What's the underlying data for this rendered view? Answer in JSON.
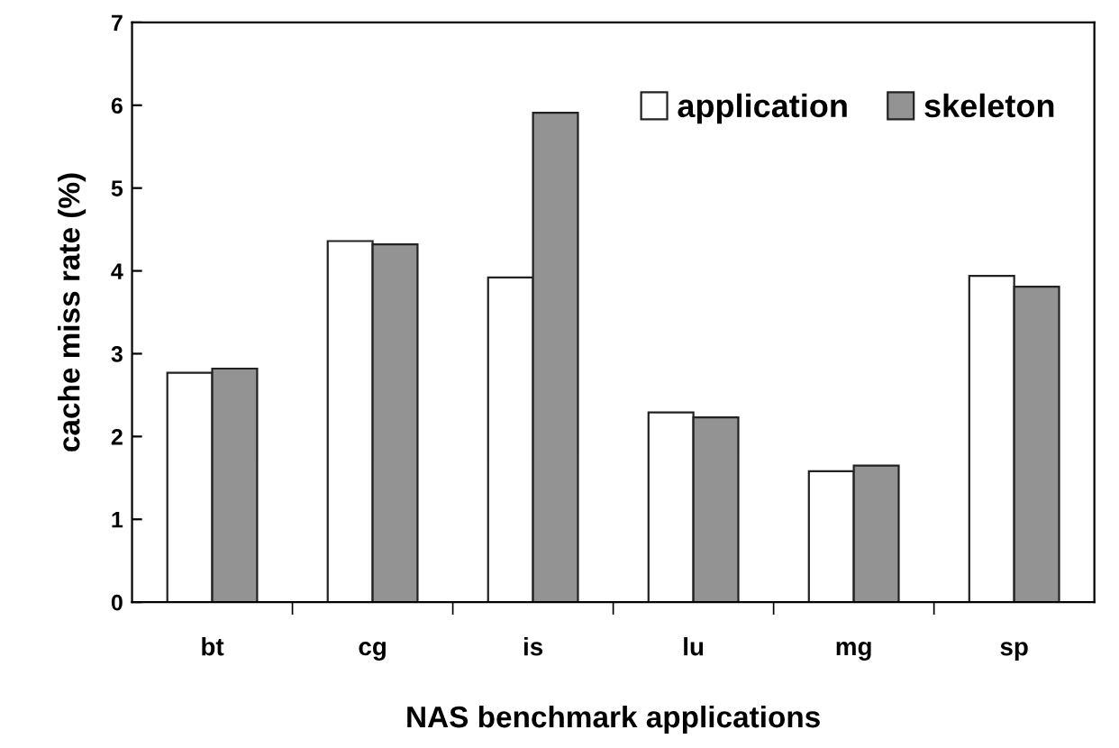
{
  "chart_data": {
    "type": "bar",
    "xlabel": "NAS benchmark applications",
    "ylabel": "cache miss rate (%)",
    "categories": [
      "bt",
      "cg",
      "is",
      "lu",
      "mg",
      "sp"
    ],
    "series": [
      {
        "name": "application",
        "color": "#ffffff",
        "values": [
          2.77,
          4.36,
          3.92,
          2.29,
          1.58,
          3.94
        ]
      },
      {
        "name": "skeleton",
        "color": "#939393",
        "values": [
          2.82,
          4.32,
          5.91,
          2.23,
          1.65,
          3.81
        ]
      }
    ],
    "ylim": [
      0,
      7
    ],
    "yticks": [
      0,
      1,
      2,
      3,
      4,
      5,
      6,
      7
    ],
    "grid": false,
    "legend": "top right"
  }
}
